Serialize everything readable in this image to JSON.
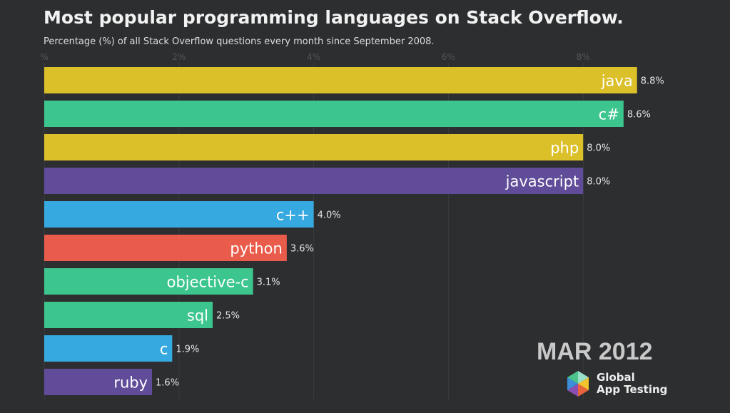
{
  "chart_data": {
    "type": "bar",
    "orientation": "horizontal",
    "title": "Most popular programming languages on Stack Overflow.",
    "subtitle": "Percentage (%) of all Stack Overflow questions every month since September 2008.",
    "xlim": [
      0,
      9
    ],
    "ticks": [
      {
        "value": 0,
        "label": "%"
      },
      {
        "value": 2,
        "label": "2%"
      },
      {
        "value": 4,
        "label": "4%"
      },
      {
        "value": 6,
        "label": "6%"
      },
      {
        "value": 8,
        "label": "8%"
      }
    ],
    "grid": true,
    "categories": [
      "java",
      "c#",
      "php",
      "javascript",
      "c++",
      "python",
      "objective-c",
      "sql",
      "c",
      "ruby"
    ],
    "values": [
      8.8,
      8.6,
      8.0,
      8.0,
      4.0,
      3.6,
      3.1,
      2.5,
      1.9,
      1.6
    ],
    "value_labels": [
      "8.8%",
      "8.6%",
      "8.0%",
      "8.0%",
      "4.0%",
      "3.6%",
      "3.1%",
      "2.5%",
      "1.9%",
      "1.6%"
    ],
    "colors": [
      "#dcc02a",
      "#3cc68e",
      "#dcc02a",
      "#604c98",
      "#36a9e0",
      "#e95c4b",
      "#3cc68e",
      "#3cc68e",
      "#36a9e0",
      "#604c98"
    ],
    "date_label": "MAR 2012"
  },
  "logo": {
    "line1": "Global",
    "line2": "App Testing"
  }
}
